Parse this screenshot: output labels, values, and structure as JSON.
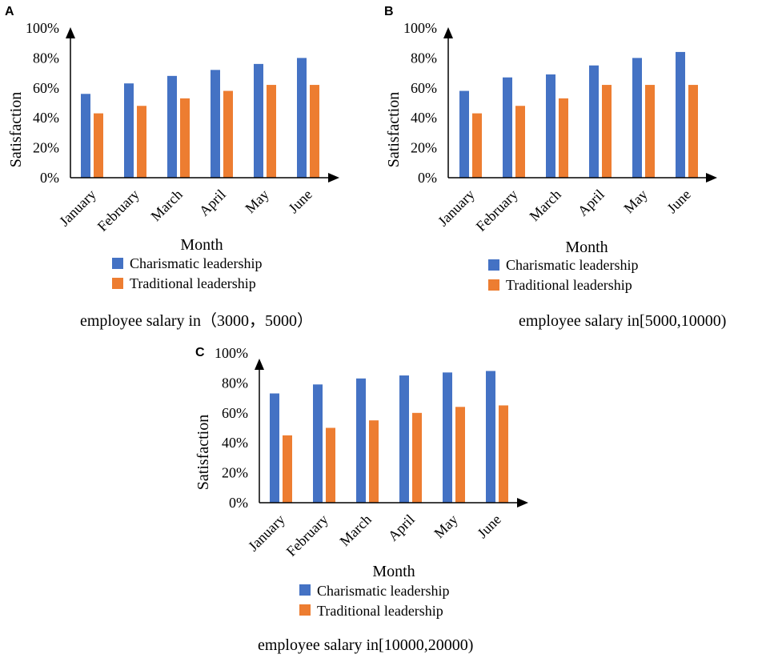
{
  "colors": {
    "charismatic": "#4472C4",
    "traditional": "#ED7D31",
    "axis": "#000000",
    "text": "#000000"
  },
  "chart_data": [
    {
      "panel": "A",
      "type": "bar",
      "categories": [
        "January",
        "February",
        "March",
        "April",
        "May",
        "June"
      ],
      "series": [
        {
          "name": "Charismatic leadership",
          "values": [
            56,
            63,
            68,
            72,
            76,
            80
          ]
        },
        {
          "name": "Traditional leadership",
          "values": [
            43,
            48,
            53,
            58,
            62,
            62
          ]
        }
      ],
      "ylabel": "Satisfaction",
      "xlabel": "Month",
      "yticks": [
        "0%",
        "20%",
        "40%",
        "60%",
        "80%",
        "100%"
      ],
      "ylim": [
        0,
        100
      ],
      "caption": "employee salary in（3000，5000）"
    },
    {
      "panel": "B",
      "type": "bar",
      "categories": [
        "January",
        "February",
        "March",
        "April",
        "May",
        "June"
      ],
      "series": [
        {
          "name": "Charismatic leadership",
          "values": [
            58,
            67,
            69,
            75,
            80,
            84
          ]
        },
        {
          "name": "Traditional leadership",
          "values": [
            43,
            48,
            53,
            62,
            62,
            62
          ]
        }
      ],
      "ylabel": "Satisfaction",
      "xlabel": "Month",
      "yticks": [
        "0%",
        "20%",
        "40%",
        "60%",
        "80%",
        "100%"
      ],
      "ylim": [
        0,
        100
      ],
      "caption": "employee salary in[5000,10000)"
    },
    {
      "panel": "C",
      "type": "bar",
      "categories": [
        "January",
        "February",
        "March",
        "April",
        "May",
        "June"
      ],
      "series": [
        {
          "name": "Charismatic leadership",
          "values": [
            73,
            79,
            83,
            85,
            87,
            88
          ]
        },
        {
          "name": "Traditional leadership",
          "values": [
            45,
            50,
            55,
            60,
            64,
            65
          ]
        }
      ],
      "ylabel": "Satisfaction",
      "xlabel": "Month",
      "yticks": [
        "0%",
        "20%",
        "40%",
        "60%",
        "80%",
        "100%"
      ],
      "ylim": [
        0,
        100
      ],
      "caption": "employee salary in[10000,20000)"
    }
  ]
}
